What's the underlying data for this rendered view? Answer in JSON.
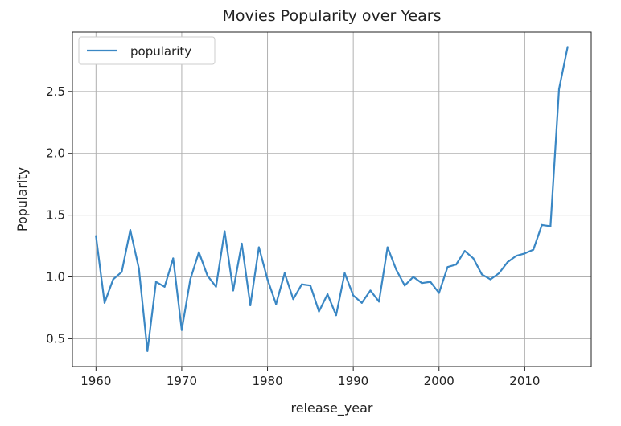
{
  "chart_data": {
    "type": "line",
    "title": "Movies Popularity over Years",
    "xlabel": "release_year",
    "ylabel": "Popularity",
    "xlim": [
      1957.25,
      2017.75
    ],
    "ylim": [
      0.275,
      2.98
    ],
    "xticks": [
      1960,
      1970,
      1980,
      1990,
      2000,
      2010
    ],
    "yticks": [
      0.5,
      1.0,
      1.5,
      2.0,
      2.5
    ],
    "xtick_labels": [
      "1960",
      "1970",
      "1980",
      "1990",
      "2000",
      "2010"
    ],
    "ytick_labels": [
      "0.5",
      "1.0",
      "1.5",
      "2.0",
      "2.5"
    ],
    "grid": true,
    "legend": "top-left",
    "series": [
      {
        "name": "popularity",
        "color": "#3a87c4",
        "x": [
          1960,
          1961,
          1962,
          1963,
          1964,
          1965,
          1966,
          1967,
          1968,
          1969,
          1970,
          1971,
          1972,
          1973,
          1974,
          1975,
          1976,
          1977,
          1978,
          1979,
          1980,
          1981,
          1982,
          1983,
          1984,
          1985,
          1986,
          1987,
          1988,
          1989,
          1990,
          1991,
          1992,
          1993,
          1994,
          1995,
          1996,
          1997,
          1998,
          1999,
          2000,
          2001,
          2002,
          2003,
          2004,
          2005,
          2006,
          2007,
          2008,
          2009,
          2010,
          2011,
          2012,
          2013,
          2014,
          2015
        ],
        "values": [
          1.33,
          0.79,
          0.98,
          1.04,
          1.38,
          1.07,
          0.4,
          0.96,
          0.92,
          1.15,
          0.57,
          0.98,
          1.2,
          1.01,
          0.92,
          1.37,
          0.89,
          1.27,
          0.77,
          1.24,
          0.98,
          0.78,
          1.03,
          0.82,
          0.94,
          0.93,
          0.72,
          0.86,
          0.69,
          1.03,
          0.85,
          0.79,
          0.89,
          0.8,
          1.24,
          1.06,
          0.93,
          1.0,
          0.95,
          0.96,
          0.87,
          1.08,
          1.1,
          1.21,
          1.15,
          1.02,
          0.98,
          1.03,
          1.12,
          1.17,
          1.19,
          1.22,
          1.42,
          1.41,
          2.52,
          2.86
        ]
      }
    ]
  }
}
